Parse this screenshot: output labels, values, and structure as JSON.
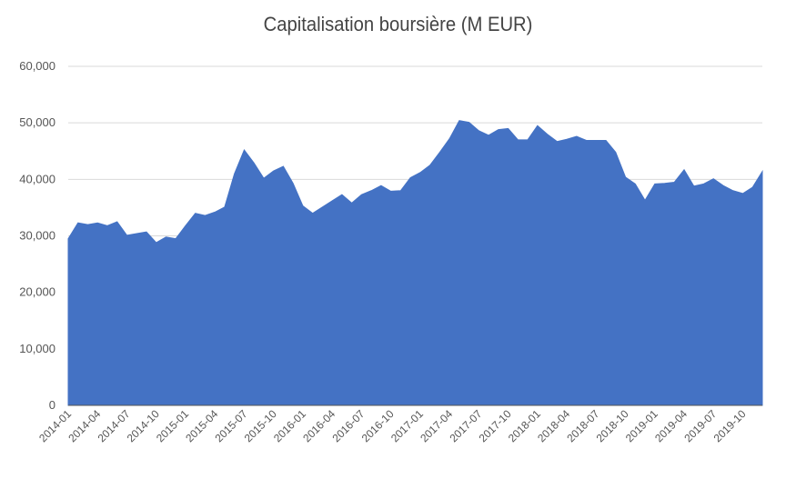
{
  "chart_data": {
    "type": "area",
    "title": "Capitalisation boursière (M EUR)",
    "xlabel": "",
    "ylabel": "",
    "ylim": [
      0,
      60000
    ],
    "yticks": [
      0,
      10000,
      20000,
      30000,
      40000,
      50000,
      60000
    ],
    "ytick_labels": [
      "0",
      "10,000",
      "20,000",
      "30,000",
      "40,000",
      "50,000",
      "60,000"
    ],
    "grid": true,
    "legend": "none",
    "color": "#4472c4",
    "xtick_labels": [
      "2014-01",
      "2014-04",
      "2014-07",
      "2014-10",
      "2015-01",
      "2015-04",
      "2015-07",
      "2015-10",
      "2016-01",
      "2016-04",
      "2016-07",
      "2016-10",
      "2017-01",
      "2017-04",
      "2017-07",
      "2017-10",
      "2018-01",
      "2018-04",
      "2018-07",
      "2018-10",
      "2019-01",
      "2019-04",
      "2019-07",
      "2019-10"
    ],
    "x": [
      "2014-01",
      "2014-02",
      "2014-03",
      "2014-04",
      "2014-05",
      "2014-06",
      "2014-07",
      "2014-08",
      "2014-09",
      "2014-10",
      "2014-11",
      "2014-12",
      "2015-01",
      "2015-02",
      "2015-03",
      "2015-04",
      "2015-05",
      "2015-06",
      "2015-07",
      "2015-08",
      "2015-09",
      "2015-10",
      "2015-11",
      "2015-12",
      "2016-01",
      "2016-02",
      "2016-03",
      "2016-04",
      "2016-05",
      "2016-06",
      "2016-07",
      "2016-08",
      "2016-09",
      "2016-10",
      "2016-11",
      "2016-12",
      "2017-01",
      "2017-02",
      "2017-03",
      "2017-04",
      "2017-05",
      "2017-06",
      "2017-07",
      "2017-08",
      "2017-09",
      "2017-10",
      "2017-11",
      "2017-12",
      "2018-01",
      "2018-02",
      "2018-03",
      "2018-04",
      "2018-05",
      "2018-06",
      "2018-07",
      "2018-08",
      "2018-09",
      "2018-10",
      "2018-11",
      "2018-12",
      "2019-01",
      "2019-02",
      "2019-03",
      "2019-04",
      "2019-05",
      "2019-06",
      "2019-07",
      "2019-08",
      "2019-09",
      "2019-10",
      "2019-11",
      "2019-12"
    ],
    "values": [
      29500,
      32300,
      32000,
      32300,
      31800,
      32500,
      30100,
      30400,
      30700,
      28800,
      29800,
      29500,
      31800,
      34000,
      33600,
      34200,
      35100,
      41000,
      45200,
      42900,
      40200,
      41500,
      42300,
      39300,
      35300,
      34000,
      35100,
      36200,
      37300,
      35800,
      37300,
      38000,
      38900,
      37900,
      38000,
      40300,
      41200,
      42500,
      44800,
      47200,
      50400,
      50100,
      48600,
      47800,
      48800,
      49000,
      47000,
      47000,
      49500,
      48000,
      46700,
      47100,
      47600,
      46900,
      46900,
      46900,
      44800,
      40400,
      39200,
      36300,
      39200,
      39300,
      39500,
      41700,
      38800,
      39200,
      40100,
      38900,
      38000,
      37500,
      38600,
      41400
    ]
  }
}
